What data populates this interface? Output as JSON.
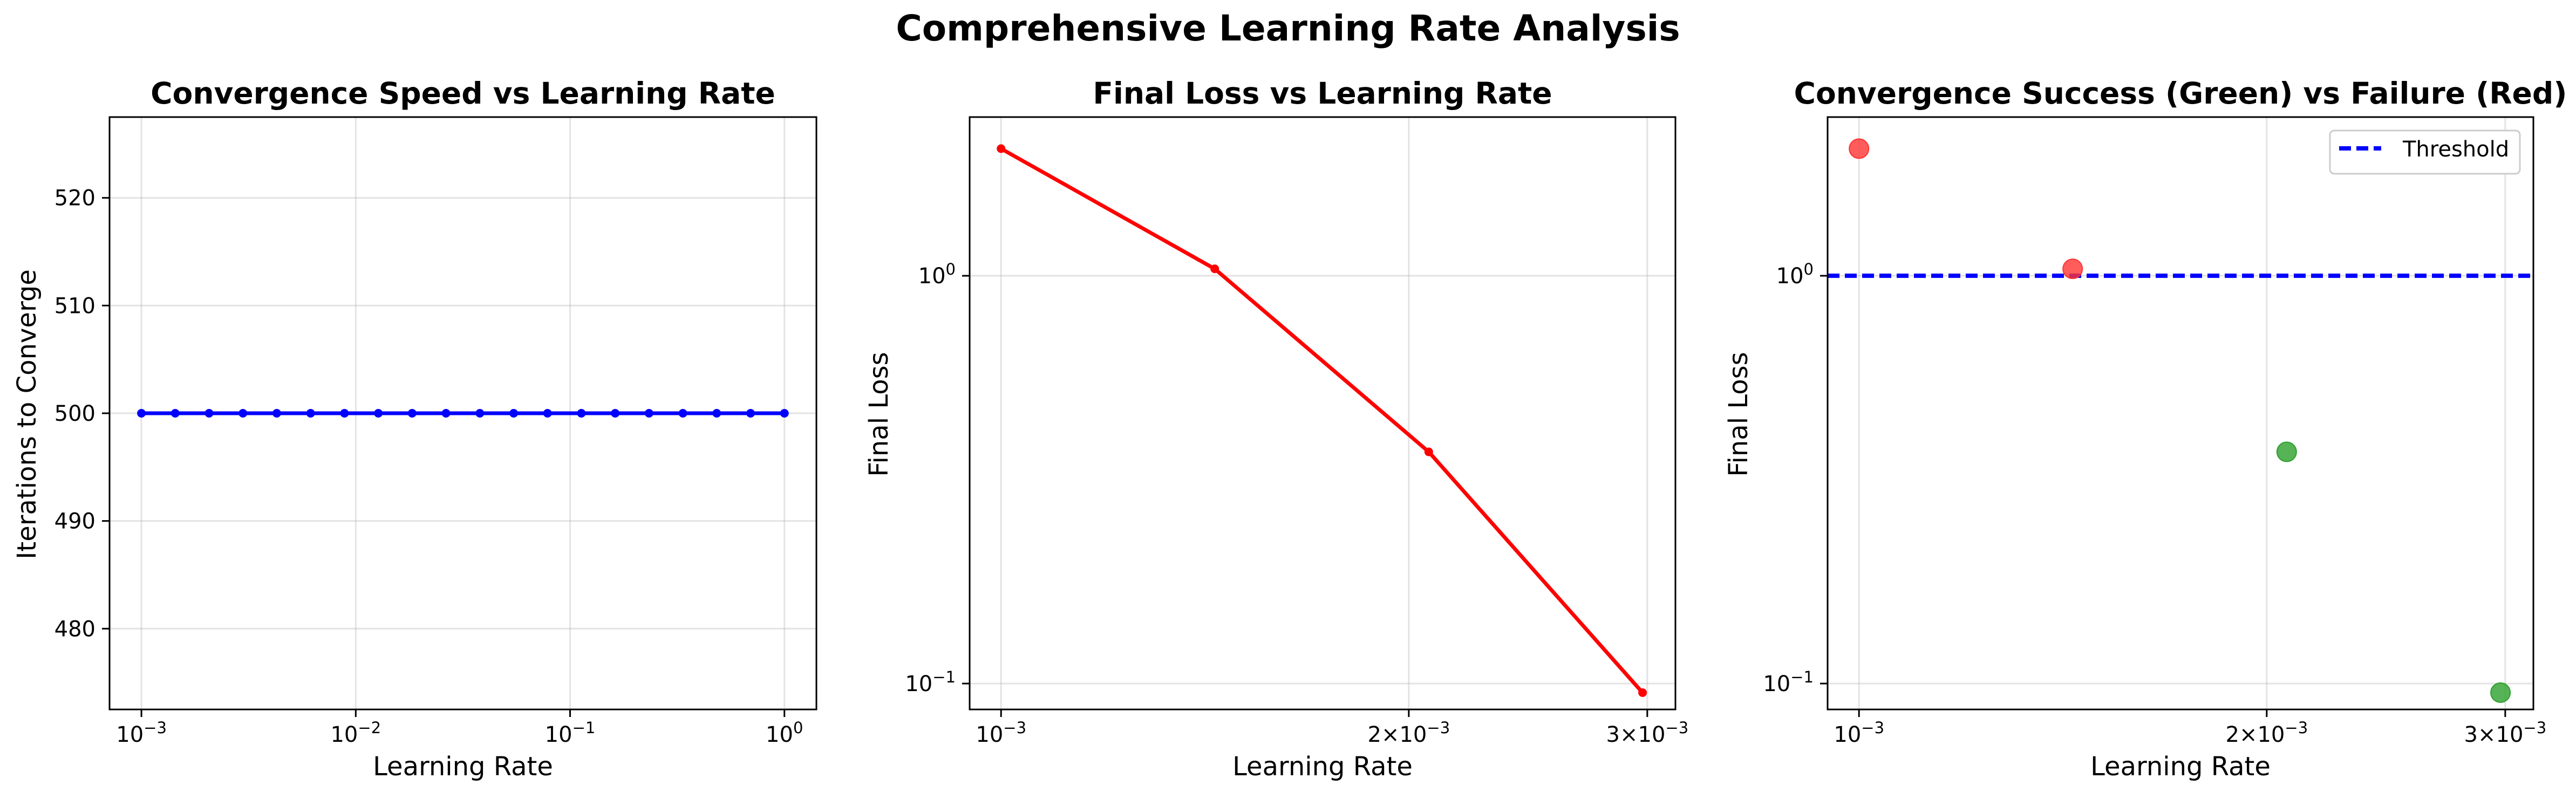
{
  "figure": {
    "title": "Comprehensive Learning Rate Analysis"
  },
  "chart_data": [
    {
      "type": "line",
      "title": "Convergence Speed vs Learning Rate",
      "xlabel": "Learning Rate",
      "ylabel": "Iterations to Converge",
      "xscale": "log",
      "xlim": [
        0.00071,
        1.41
      ],
      "ylim": [
        472.5,
        527.5
      ],
      "xticks": [
        {
          "value": 0.001,
          "mant": "10",
          "exp": "−3"
        },
        {
          "value": 0.01,
          "mant": "10",
          "exp": "−2"
        },
        {
          "value": 0.1,
          "mant": "10",
          "exp": "−1"
        },
        {
          "value": 1,
          "mant": "10",
          "exp": "0"
        }
      ],
      "yticks": [
        {
          "value": 480,
          "label": "480"
        },
        {
          "value": 490,
          "label": "490"
        },
        {
          "value": 500,
          "label": "500"
        },
        {
          "value": 510,
          "label": "510"
        },
        {
          "value": 520,
          "label": "520"
        }
      ],
      "grid": true,
      "series": [
        {
          "color": "#0000ff",
          "marker": "circle",
          "x": [
            0.001,
            0.001438,
            0.002069,
            0.002976,
            0.004281,
            0.006158,
            0.008859,
            0.012743,
            0.01833,
            0.026367,
            0.037927,
            0.054556,
            0.078476,
            0.112884,
            0.162378,
            0.233572,
            0.335982,
            0.483293,
            0.695193,
            1.0
          ],
          "y": [
            500,
            500,
            500,
            500,
            500,
            500,
            500,
            500,
            500,
            500,
            500,
            500,
            500,
            500,
            500,
            500,
            500,
            500,
            500,
            500
          ]
        }
      ]
    },
    {
      "type": "line",
      "title": "Final Loss vs Learning Rate",
      "xlabel": "Learning Rate",
      "ylabel": "Final Loss",
      "xscale": "log",
      "yscale": "log",
      "xlim": [
        0.000948,
        0.003147
      ],
      "ylim": [
        0.0864,
        2.45
      ],
      "xticks": [
        {
          "value": 0.001,
          "mant": "10",
          "exp": "−3"
        },
        {
          "value": 0.002,
          "mant": "2×10",
          "exp": "−3"
        },
        {
          "value": 0.003,
          "mant": "3×10",
          "exp": "−3"
        }
      ],
      "yticks": [
        {
          "value": 0.1,
          "mant": "10",
          "exp": "−1"
        },
        {
          "value": 1,
          "mant": "10",
          "exp": "0"
        }
      ],
      "grid": true,
      "series": [
        {
          "color": "#ff0000",
          "marker": "circle",
          "x": [
            0.001,
            0.001438,
            0.002069,
            0.002976
          ],
          "y": [
            2.05,
            1.04,
            0.37,
            0.095
          ]
        }
      ]
    },
    {
      "type": "scatter",
      "title": "Convergence Success (Green) vs Failure (Red)",
      "xlabel": "Learning Rate",
      "ylabel": "Final Loss",
      "xscale": "log",
      "yscale": "log",
      "xlim": [
        0.000948,
        0.003147
      ],
      "ylim": [
        0.0864,
        2.45
      ],
      "xticks": [
        {
          "value": 0.001,
          "mant": "10",
          "exp": "−3"
        },
        {
          "value": 0.002,
          "mant": "2×10",
          "exp": "−3"
        },
        {
          "value": 0.003,
          "mant": "3×10",
          "exp": "−3"
        }
      ],
      "yticks": [
        {
          "value": 0.1,
          "mant": "10",
          "exp": "−1"
        },
        {
          "value": 1,
          "mant": "10",
          "exp": "0"
        }
      ],
      "grid": true,
      "legend_position": "top-right",
      "threshold": {
        "y": 1.0,
        "label": "Threshold",
        "color": "#0000ff",
        "style": "dashed"
      },
      "points": [
        {
          "x": 0.001,
          "y": 2.05,
          "color": "#ff3333"
        },
        {
          "x": 0.001438,
          "y": 1.04,
          "color": "#ff3333"
        },
        {
          "x": 0.002069,
          "y": 0.37,
          "color": "#2ca02c"
        },
        {
          "x": 0.002976,
          "y": 0.095,
          "color": "#2ca02c"
        }
      ]
    }
  ]
}
